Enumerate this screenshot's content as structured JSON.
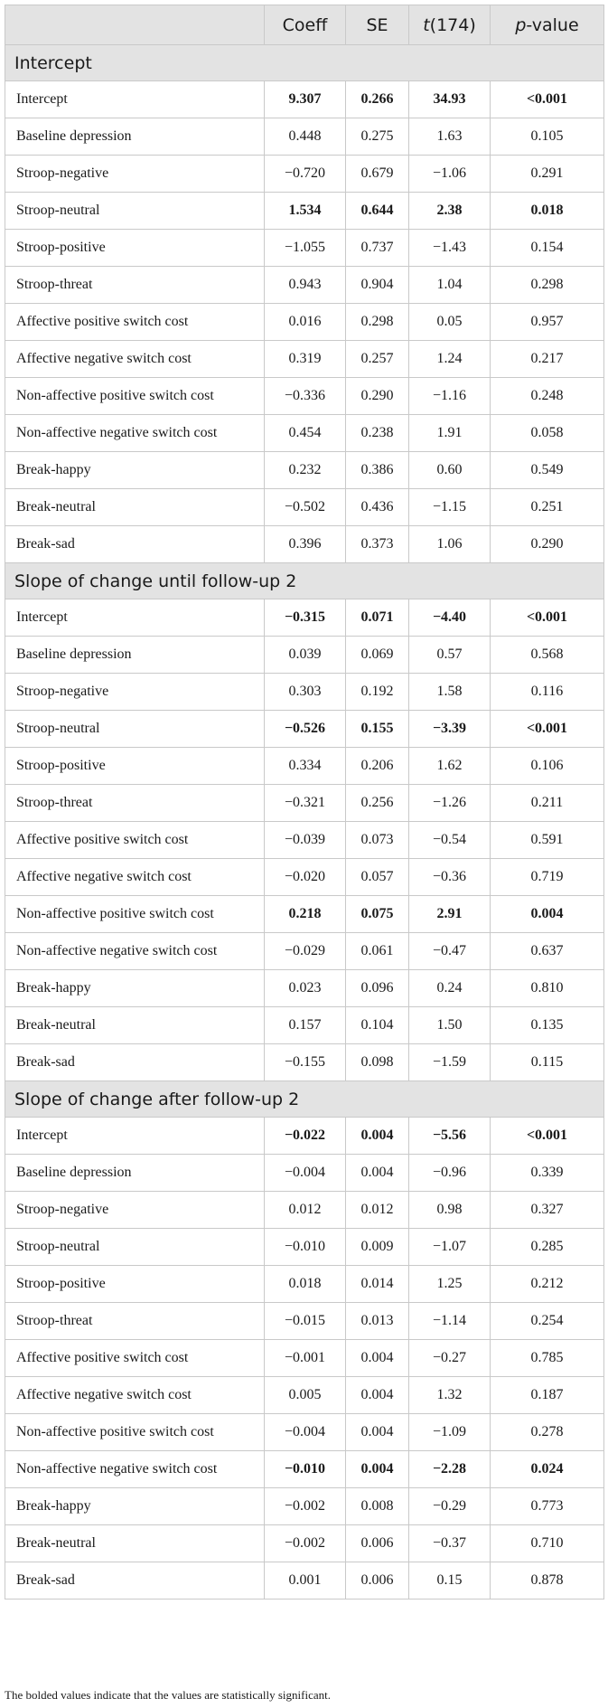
{
  "header": {
    "columns": [
      {
        "pre": "",
        "ital": "",
        "post": ""
      },
      {
        "pre": "Coeff",
        "ital": "",
        "post": ""
      },
      {
        "pre": "SE",
        "ital": "",
        "post": ""
      },
      {
        "pre": "",
        "ital": "t",
        "post": "(174)"
      },
      {
        "pre": "",
        "ital": "p",
        "post": "-value"
      }
    ]
  },
  "sections": [
    {
      "title": "Intercept",
      "rows": [
        {
          "label": "Intercept",
          "bold": true,
          "values": [
            "9.307",
            "0.266",
            "34.93",
            "<0.001"
          ]
        },
        {
          "label": "Baseline depression",
          "bold": false,
          "values": [
            "0.448",
            "0.275",
            "1.63",
            "0.105"
          ]
        },
        {
          "label": "Stroop-negative",
          "bold": false,
          "values": [
            "−0.720",
            "0.679",
            "−1.06",
            "0.291"
          ]
        },
        {
          "label": "Stroop-neutral",
          "bold": true,
          "values": [
            "1.534",
            "0.644",
            "2.38",
            "0.018"
          ]
        },
        {
          "label": "Stroop-positive",
          "bold": false,
          "values": [
            "−1.055",
            "0.737",
            "−1.43",
            "0.154"
          ]
        },
        {
          "label": "Stroop-threat",
          "bold": false,
          "values": [
            "0.943",
            "0.904",
            "1.04",
            "0.298"
          ]
        },
        {
          "label": "Affective positive switch cost",
          "bold": false,
          "values": [
            "0.016",
            "0.298",
            "0.05",
            "0.957"
          ]
        },
        {
          "label": "Affective negative switch cost",
          "bold": false,
          "values": [
            "0.319",
            "0.257",
            "1.24",
            "0.217"
          ]
        },
        {
          "label": "Non-affective positive switch cost",
          "bold": false,
          "values": [
            "−0.336",
            "0.290",
            "−1.16",
            "0.248"
          ]
        },
        {
          "label": "Non-affective negative switch cost",
          "bold": false,
          "values": [
            "0.454",
            "0.238",
            "1.91",
            "0.058"
          ]
        },
        {
          "label": "Break-happy",
          "bold": false,
          "values": [
            "0.232",
            "0.386",
            "0.60",
            "0.549"
          ]
        },
        {
          "label": "Break-neutral",
          "bold": false,
          "values": [
            "−0.502",
            "0.436",
            "−1.15",
            "0.251"
          ]
        },
        {
          "label": "Break-sad",
          "bold": false,
          "values": [
            "0.396",
            "0.373",
            "1.06",
            "0.290"
          ]
        }
      ]
    },
    {
      "title": "Slope of change until follow-up 2",
      "rows": [
        {
          "label": "Intercept",
          "bold": true,
          "values": [
            "−0.315",
            "0.071",
            "−4.40",
            "<0.001"
          ]
        },
        {
          "label": "Baseline depression",
          "bold": false,
          "values": [
            "0.039",
            "0.069",
            "0.57",
            "0.568"
          ]
        },
        {
          "label": "Stroop-negative",
          "bold": false,
          "values": [
            "0.303",
            "0.192",
            "1.58",
            "0.116"
          ]
        },
        {
          "label": "Stroop-neutral",
          "bold": true,
          "values": [
            "−0.526",
            "0.155",
            "−3.39",
            "<0.001"
          ]
        },
        {
          "label": "Stroop-positive",
          "bold": false,
          "values": [
            "0.334",
            "0.206",
            "1.62",
            "0.106"
          ]
        },
        {
          "label": "Stroop-threat",
          "bold": false,
          "values": [
            "−0.321",
            "0.256",
            "−1.26",
            "0.211"
          ]
        },
        {
          "label": "Affective positive switch cost",
          "bold": false,
          "values": [
            "−0.039",
            "0.073",
            "−0.54",
            "0.591"
          ]
        },
        {
          "label": "Affective negative switch cost",
          "bold": false,
          "values": [
            "−0.020",
            "0.057",
            "−0.36",
            "0.719"
          ]
        },
        {
          "label": "Non-affective positive switch cost",
          "bold": true,
          "values": [
            "0.218",
            "0.075",
            "2.91",
            "0.004"
          ]
        },
        {
          "label": "Non-affective negative switch cost",
          "bold": false,
          "values": [
            "−0.029",
            "0.061",
            "−0.47",
            "0.637"
          ]
        },
        {
          "label": "Break-happy",
          "bold": false,
          "values": [
            "0.023",
            "0.096",
            "0.24",
            "0.810"
          ]
        },
        {
          "label": "Break-neutral",
          "bold": false,
          "values": [
            "0.157",
            "0.104",
            "1.50",
            "0.135"
          ]
        },
        {
          "label": "Break-sad",
          "bold": false,
          "values": [
            "−0.155",
            "0.098",
            "−1.59",
            "0.115"
          ]
        }
      ]
    },
    {
      "title": "Slope of change after follow-up 2",
      "rows": [
        {
          "label": "Intercept",
          "bold": true,
          "values": [
            "−0.022",
            "0.004",
            "−5.56",
            "<0.001"
          ]
        },
        {
          "label": "Baseline depression",
          "bold": false,
          "values": [
            "−0.004",
            "0.004",
            "−0.96",
            "0.339"
          ]
        },
        {
          "label": "Stroop-negative",
          "bold": false,
          "values": [
            "0.012",
            "0.012",
            "0.98",
            "0.327"
          ]
        },
        {
          "label": "Stroop-neutral",
          "bold": false,
          "values": [
            "−0.010",
            "0.009",
            "−1.07",
            "0.285"
          ]
        },
        {
          "label": "Stroop-positive",
          "bold": false,
          "values": [
            "0.018",
            "0.014",
            "1.25",
            "0.212"
          ]
        },
        {
          "label": "Stroop-threat",
          "bold": false,
          "values": [
            "−0.015",
            "0.013",
            "−1.14",
            "0.254"
          ]
        },
        {
          "label": "Affective positive switch cost",
          "bold": false,
          "values": [
            "−0.001",
            "0.004",
            "−0.27",
            "0.785"
          ]
        },
        {
          "label": "Affective negative switch cost",
          "bold": false,
          "values": [
            "0.005",
            "0.004",
            "1.32",
            "0.187"
          ]
        },
        {
          "label": "Non-affective positive switch cost",
          "bold": false,
          "values": [
            "−0.004",
            "0.004",
            "−1.09",
            "0.278"
          ]
        },
        {
          "label": "Non-affective negative switch cost",
          "bold": true,
          "values": [
            "−0.010",
            "0.004",
            "−2.28",
            "0.024"
          ]
        },
        {
          "label": "Break-happy",
          "bold": false,
          "values": [
            "−0.002",
            "0.008",
            "−0.29",
            "0.773"
          ]
        },
        {
          "label": "Break-neutral",
          "bold": false,
          "values": [
            "−0.002",
            "0.006",
            "−0.37",
            "0.710"
          ]
        },
        {
          "label": "Break-sad",
          "bold": false,
          "values": [
            "0.001",
            "0.006",
            "0.15",
            "0.878"
          ]
        }
      ]
    }
  ],
  "footnote": "The bolded values indicate that the values are statistically significant.",
  "colors": {
    "header_bg": "#e3e3e3",
    "border": "#c9c9c9",
    "text": "#1a1a1a"
  }
}
